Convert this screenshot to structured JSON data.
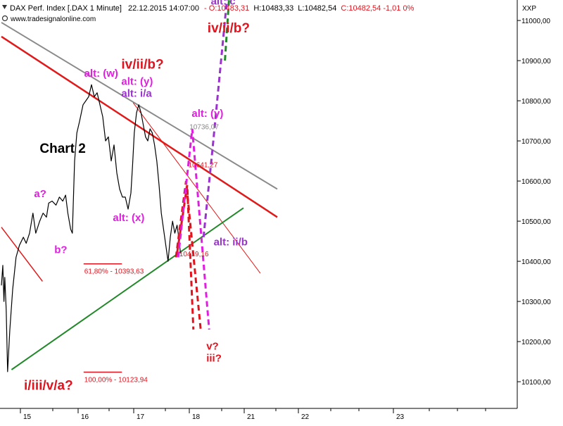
{
  "header": {
    "instrument": "DAX Perf. Index [.DAX  1 Minute]",
    "timestamp": "22.12.2015 14:07:00",
    "ohlc_prefix": "-",
    "open": "O:10483,31",
    "high": "H:10483,33",
    "low": "L:10482,54",
    "close": "C:10482,54 -1,01 0%",
    "watermark": "www.tradesignalonline.com",
    "axis_tag": "XXP"
  },
  "colors": {
    "price": "#000000",
    "red": "#e0141e",
    "magenta": "#e01ee0",
    "purple": "#9a32cd",
    "green": "#22882a",
    "grey": "#8a8a8a",
    "trend_red": "#e01a1a"
  },
  "chart_data": {
    "type": "line",
    "x_label": "",
    "y_label": "",
    "x_ticks": [
      "15",
      "16",
      "17",
      "18",
      "21",
      "22",
      "23"
    ],
    "y_ticks": [
      "10100,00",
      "10200,00",
      "10300,00",
      "10400,00",
      "10500,00",
      "10600,00",
      "10700,00",
      "10800,00",
      "10900,00",
      "11000,00"
    ],
    "ylim": [
      10030,
      11130
    ],
    "price_path": [
      [
        0.0,
        10340
      ],
      [
        0.25,
        10390
      ],
      [
        0.45,
        10300
      ],
      [
        0.6,
        10360
      ],
      [
        0.85,
        10280
      ],
      [
        1.1,
        10125
      ],
      [
        1.5,
        10230
      ],
      [
        2.0,
        10330
      ],
      [
        2.6,
        10410
      ],
      [
        3.2,
        10440
      ],
      [
        3.9,
        10460
      ],
      [
        4.4,
        10445
      ],
      [
        5.0,
        10470
      ],
      [
        5.6,
        10520
      ],
      [
        6.1,
        10470
      ],
      [
        6.8,
        10500
      ],
      [
        7.4,
        10520
      ],
      [
        8.0,
        10510
      ],
      [
        8.4,
        10545
      ],
      [
        9.0,
        10550
      ],
      [
        9.7,
        10540
      ],
      [
        10.3,
        10560
      ],
      [
        10.9,
        10550
      ],
      [
        11.4,
        10565
      ],
      [
        11.8,
        10520
      ],
      [
        12.3,
        10480
      ],
      [
        12.6,
        10470
      ],
      [
        13.0,
        10650
      ],
      [
        13.4,
        10720
      ],
      [
        13.9,
        10750
      ],
      [
        14.5,
        10790
      ],
      [
        15.0,
        10800
      ],
      [
        15.5,
        10810
      ],
      [
        16.0,
        10840
      ],
      [
        16.5,
        10810
      ],
      [
        17.0,
        10820
      ],
      [
        17.5,
        10790
      ],
      [
        18.0,
        10760
      ],
      [
        18.5,
        10700
      ],
      [
        19.0,
        10710
      ],
      [
        19.5,
        10650
      ],
      [
        20.0,
        10690
      ],
      [
        20.5,
        10620
      ],
      [
        21.0,
        10580
      ],
      [
        21.5,
        10560
      ],
      [
        22.0,
        10560
      ],
      [
        22.5,
        10530
      ],
      [
        23.0,
        10570
      ],
      [
        23.3,
        10640
      ],
      [
        23.6,
        10720
      ],
      [
        24.0,
        10770
      ],
      [
        24.4,
        10790
      ],
      [
        24.8,
        10770
      ],
      [
        25.2,
        10740
      ],
      [
        25.6,
        10710
      ],
      [
        26.0,
        10700
      ],
      [
        26.4,
        10730
      ],
      [
        26.8,
        10720
      ],
      [
        27.2,
        10690
      ],
      [
        27.6,
        10650
      ],
      [
        28.0,
        10590
      ],
      [
        28.4,
        10520
      ],
      [
        28.8,
        10480
      ],
      [
        29.2,
        10440
      ],
      [
        29.6,
        10400
      ],
      [
        30.0,
        10460
      ],
      [
        30.4,
        10500
      ],
      [
        30.8,
        10470
      ],
      [
        31.2,
        10490
      ],
      [
        31.6,
        10450
      ],
      [
        31.8,
        10420
      ]
    ],
    "price_day_span": [
      0,
      31.8
    ],
    "annotations": [
      {
        "text": "alt: (w)",
        "color_key": "magenta",
        "day": 14.7,
        "value": 10860
      },
      {
        "text": "iv/ii/b?",
        "color_key": "red",
        "day": 21.3,
        "value": 10880,
        "big": true
      },
      {
        "text": "alt: (y)",
        "color_key": "magenta",
        "day": 21.3,
        "value": 10840
      },
      {
        "text": "alt: i/a",
        "color_key": "purple",
        "day": 21.3,
        "value": 10810
      },
      {
        "text": "Chart 2",
        "color_key": "price",
        "day": 6.8,
        "value": 10670,
        "big": true
      },
      {
        "text": "a?",
        "color_key": "magenta",
        "day": 5.8,
        "value": 10560
      },
      {
        "text": "b?",
        "color_key": "magenta",
        "day": 9.4,
        "value": 10420
      },
      {
        "text": "alt: (x)",
        "color_key": "magenta",
        "day": 19.8,
        "value": 10500
      },
      {
        "text": "alt: (y)",
        "color_key": "magenta",
        "day": 33.8,
        "value": 10760
      },
      {
        "text": "alt: c",
        "color_key": "purple",
        "day": 37.2,
        "value": 11040
      },
      {
        "text": "iv/ii/b?",
        "color_key": "red",
        "day": 36.6,
        "value": 10970,
        "big": true
      },
      {
        "text": "alt: ii/b",
        "color_key": "purple",
        "day": 37.7,
        "value": 10440
      },
      {
        "text": "v?",
        "color_key": "red",
        "day": 36.4,
        "value": 10180
      },
      {
        "text": "iii?",
        "color_key": "red",
        "day": 36.4,
        "value": 10150
      },
      {
        "text": "i/iii/v/a?",
        "color_key": "red",
        "day": 4.0,
        "value": 10080,
        "big": true
      }
    ],
    "levels": [
      {
        "label": "61,80% - 10393,63",
        "value": 10393.63,
        "day_from": 14.6,
        "day_to": 21.4
      },
      {
        "label": "100,00% - 10123,94",
        "value": 10123.94,
        "day_from": 14.6,
        "day_to": 21.4
      }
    ],
    "price_labels": [
      {
        "text": "10736,07",
        "value": 10736.07,
        "day": 33.4
      },
      {
        "text": "10641,27",
        "value": 10641.27,
        "day": 33.2
      },
      {
        "text": "10419,16",
        "value": 10419.16,
        "day": 31.6
      }
    ],
    "trend_lines": [
      {
        "color_key": "grey",
        "width": 2.0,
        "from": [
          0,
          10995
        ],
        "to": [
          49,
          10580
        ]
      },
      {
        "color_key": "trend_red",
        "width": 2.5,
        "from": [
          0,
          10960
        ],
        "to": [
          49,
          10510
        ]
      },
      {
        "color_key": "trend_red",
        "width": 1.0,
        "from": [
          23.4,
          10795
        ],
        "to": [
          46,
          10370
        ]
      },
      {
        "color_key": "green",
        "width": 2.0,
        "from": [
          1.8,
          10130
        ],
        "to": [
          43,
          10533
        ]
      },
      {
        "color_key": "trend_red",
        "width": 1.5,
        "from": [
          0,
          10485
        ],
        "to": [
          7.3,
          10350
        ]
      }
    ],
    "projections": [
      {
        "color_key": "red",
        "points": [
          [
            31.2,
            10420
          ],
          [
            33.0,
            10590
          ],
          [
            34.1,
            10230
          ]
        ]
      },
      {
        "color_key": "red",
        "points": [
          [
            31.0,
            10410
          ],
          [
            32.8,
            10600
          ],
          [
            35.4,
            10230
          ]
        ]
      },
      {
        "color_key": "magenta",
        "points": [
          [
            31.4,
            10410
          ],
          [
            33.9,
            10730
          ],
          [
            36.9,
            10230
          ]
        ]
      },
      {
        "color_key": "purple",
        "points": [
          [
            35.9,
            10460
          ],
          [
            37.5,
            10680
          ],
          [
            40.6,
            11130
          ]
        ]
      },
      {
        "color_key": "green",
        "points": [
          [
            39.7,
            10900
          ],
          [
            40.8,
            11130
          ]
        ]
      }
    ]
  }
}
